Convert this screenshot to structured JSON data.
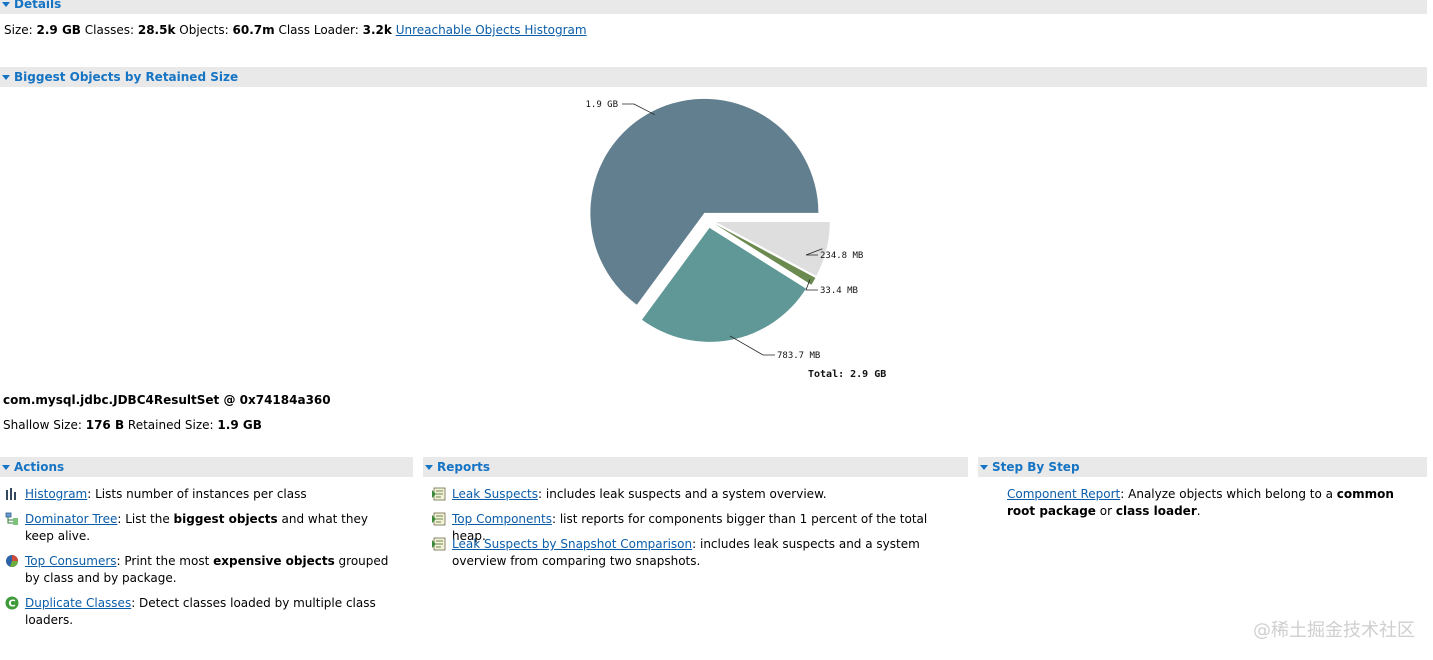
{
  "details": {
    "title": "Details",
    "size_label": "Size:",
    "size_value": "2.9 GB",
    "classes_label": "Classes:",
    "classes_value": "28.5k",
    "objects_label": "Objects:",
    "objects_value": "60.7m",
    "loader_label": "Class Loader:",
    "loader_value": "3.2k",
    "histogram_link": "Unreachable Objects Histogram"
  },
  "biggest": {
    "title": "Biggest Objects by Retained Size",
    "object_name": "com.mysql.jdbc.JDBC4ResultSet @ 0x74184a360",
    "shallow_label": "Shallow Size:",
    "shallow_value": "176 B",
    "retained_label": "Retained Size:",
    "retained_value": "1.9 GB"
  },
  "chart_data": {
    "type": "pie",
    "slices": [
      {
        "label": "1.9 GB",
        "value": 1945.6,
        "color": "#627f8f"
      },
      {
        "label": "783.7 MB",
        "value": 783.7,
        "color": "#5f9896"
      },
      {
        "label": "33.4 MB",
        "value": 33.4,
        "color": "#6b8a4f"
      },
      {
        "label": "234.8 MB",
        "value": 234.8,
        "color": "#dedede"
      }
    ],
    "total_label": "Total: 2.9 GB"
  },
  "actions": {
    "title": "Actions",
    "items": [
      {
        "link": "Histogram",
        "text": ": Lists number of instances per class",
        "icon": "histogram-icon"
      },
      {
        "link": "Dominator Tree",
        "pre": ": List the ",
        "bold": "biggest objects",
        "post": " and what they keep alive.",
        "icon": "dominator-tree-icon"
      },
      {
        "link": "Top Consumers",
        "pre": ": Print the most ",
        "bold": "expensive objects",
        "post": " grouped by class and by package.",
        "icon": "top-consumers-icon"
      },
      {
        "link": "Duplicate Classes",
        "text": ": Detect classes loaded by multiple class loaders.",
        "icon": "duplicate-classes-icon"
      }
    ]
  },
  "reports": {
    "title": "Reports",
    "items": [
      {
        "link": "Leak Suspects",
        "text": ": includes leak suspects and a system overview."
      },
      {
        "link": "Top Components",
        "text": ": list reports for components bigger than 1 percent of the total heap."
      },
      {
        "link": "Leak Suspects by Snapshot Comparison",
        "text": ": includes leak suspects and a system overview from comparing two snapshots."
      }
    ]
  },
  "step": {
    "title": "Step By Step",
    "link": "Component Report",
    "pre": ": Analyze objects which belong to a ",
    "bold1": "common root package",
    "mid": " or ",
    "bold2": "class loader",
    "post": "."
  },
  "watermark": "@稀土掘金技术社区",
  "colors": {
    "accent": "#1674c4",
    "header_bg": "#e9e9e9",
    "link": "#0b5da9"
  }
}
